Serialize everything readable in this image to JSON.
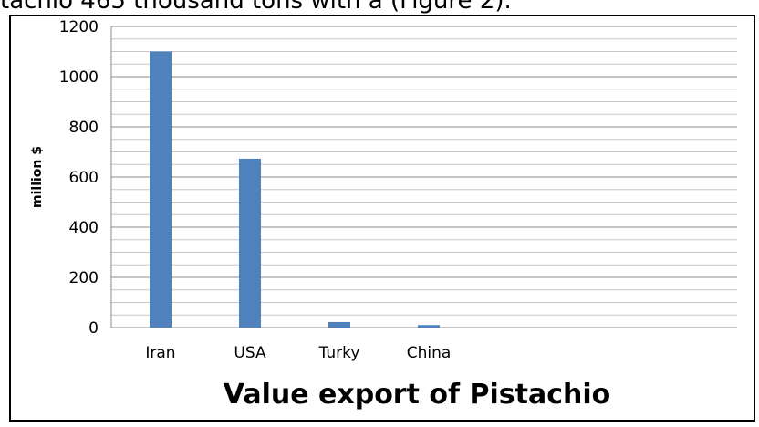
{
  "caption_fragment": "tachio 465 thousand tons with a       (Figure 2).",
  "chart_data": {
    "type": "bar",
    "title": "Value export of Pistachio",
    "xlabel": "",
    "ylabel": "million $",
    "categories": [
      "Iran",
      "USA",
      "Turky",
      "China"
    ],
    "values": [
      1100,
      673,
      22,
      10
    ],
    "ylim": [
      0,
      1200
    ],
    "yticks": [
      0,
      200,
      400,
      600,
      800,
      1000,
      1200
    ],
    "grid": true,
    "bar_color": "#4F81BD",
    "legend": "none"
  }
}
